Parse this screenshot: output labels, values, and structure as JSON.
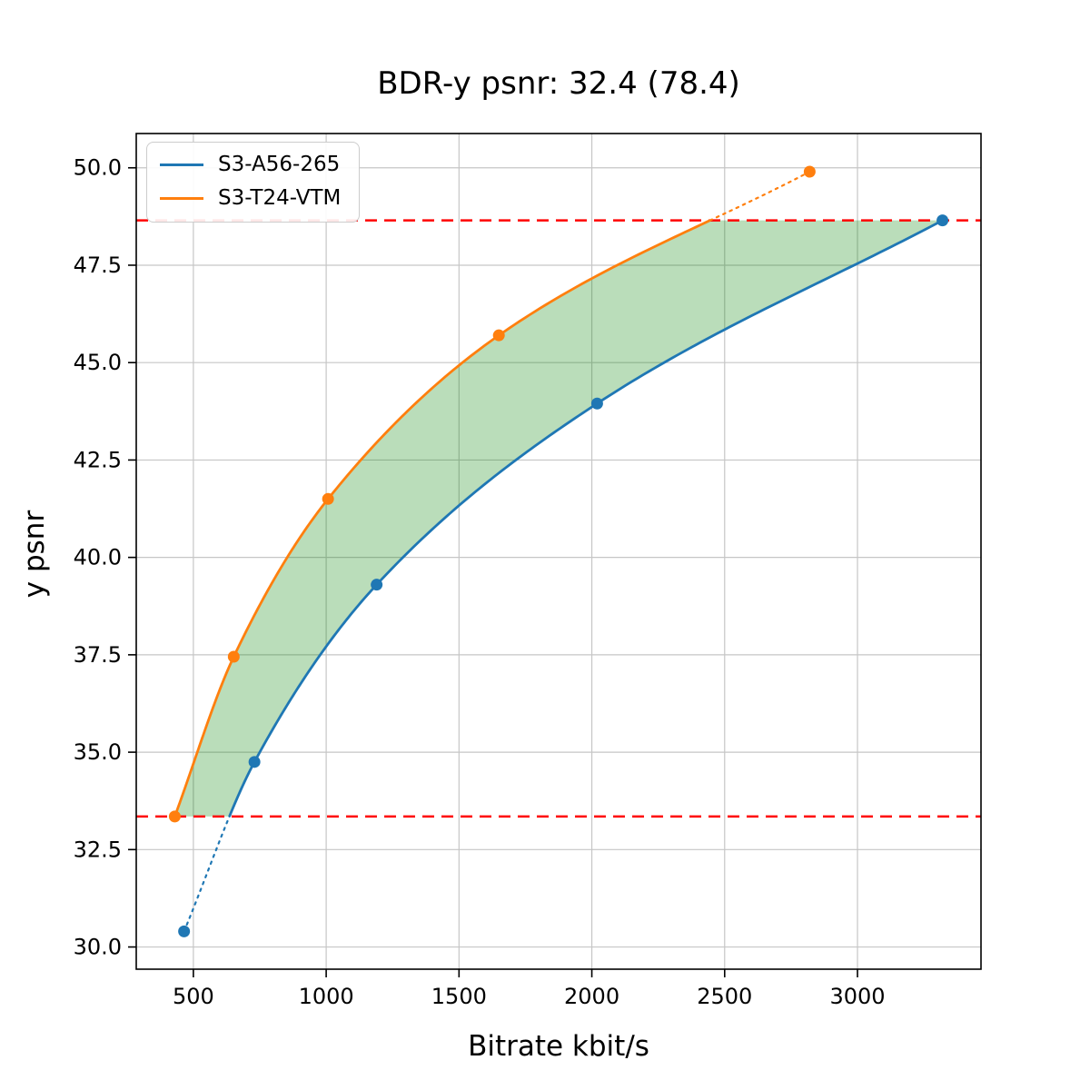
{
  "title": "BDR-y psnr: 32.4 (78.4)",
  "chart_data": {
    "type": "line",
    "title": "BDR-y psnr: 32.4 (78.4)",
    "xlabel": "Bitrate kbit/s",
    "ylabel": "y psnr",
    "xlim": [
      285,
      3465
    ],
    "ylim": [
      29.43,
      50.88
    ],
    "xticks": [
      500,
      1000,
      1500,
      2000,
      2500,
      3000
    ],
    "xtick_labels": [
      "500",
      "1000",
      "1500",
      "2000",
      "2500",
      "3000"
    ],
    "yticks": [
      30.0,
      32.5,
      35.0,
      37.5,
      40.0,
      42.5,
      45.0,
      47.5,
      50.0
    ],
    "ytick_labels": [
      "30.0",
      "32.5",
      "35.0",
      "37.5",
      "40.0",
      "42.5",
      "45.0",
      "47.5",
      "50.0"
    ],
    "grid": true,
    "grid_color": "#c6c6c6",
    "legend_position": "upper-left",
    "series": [
      {
        "name": "S3-A56-265",
        "color": "#1f77b4",
        "x": [
          465,
          730,
          1190,
          2020,
          3320
        ],
        "y": [
          30.4,
          34.75,
          39.3,
          43.95,
          48.65
        ]
      },
      {
        "name": "S3-T24-VTM",
        "color": "#ff7f0e",
        "x": [
          430,
          652,
          1007,
          1650,
          2820
        ],
        "y": [
          33.35,
          37.45,
          41.5,
          45.7,
          49.9
        ]
      }
    ],
    "hlines": [
      {
        "y": 33.35,
        "color": "#ff0000",
        "style": "dashed"
      },
      {
        "y": 48.65,
        "color": "#ff0000",
        "style": "dashed"
      }
    ],
    "fill_between": {
      "lower_psnr": 33.35,
      "upper_psnr": 48.65,
      "color": "rgba(0,128,0,0.27)"
    }
  }
}
